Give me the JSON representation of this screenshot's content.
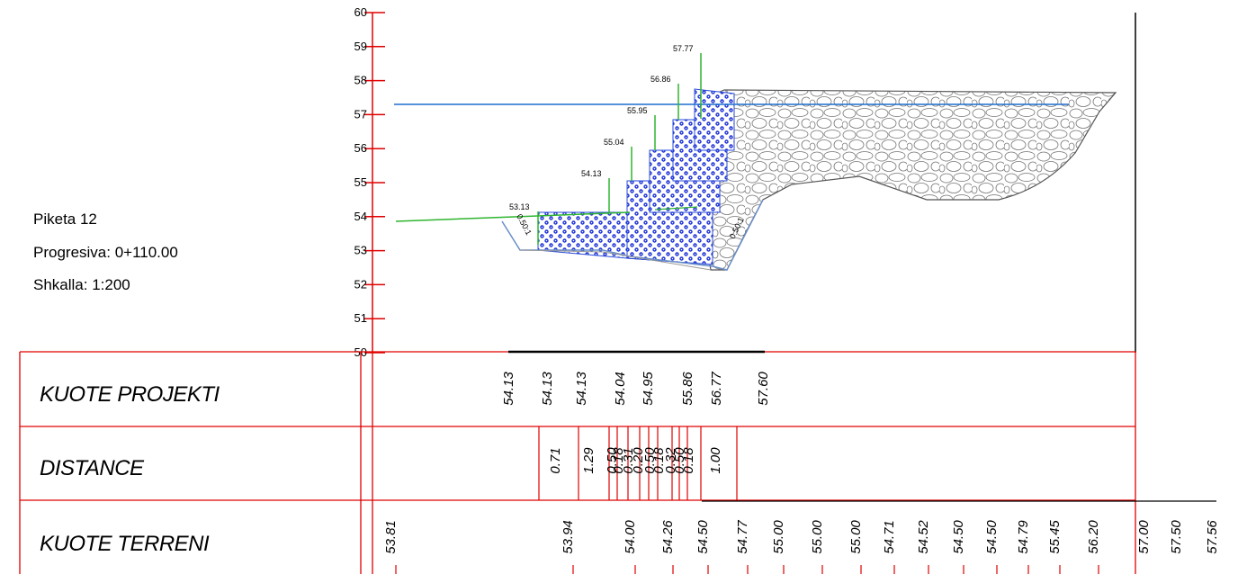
{
  "info": {
    "piketa": "Piketa 12",
    "progresiva": "Progresiva: 0+110.00",
    "shkalla": "Shkalla: 1:200"
  },
  "axis": {
    "ticks": [
      "60",
      "59",
      "58",
      "57",
      "56",
      "55",
      "54",
      "53",
      "52",
      "51",
      "50"
    ]
  },
  "step_elevations": [
    "53.13",
    "54.13",
    "55.04",
    "55.95",
    "56.86",
    "57.77"
  ],
  "slope_labels": [
    "0.50:1",
    "0.50:1"
  ],
  "rows": {
    "kuote_projekti": {
      "label": "KUOTE PROJEKTI",
      "values": [
        "54.13",
        "54.13",
        "54.13",
        "54.04",
        "54.95",
        "55.86",
        "56.77",
        "57.60"
      ]
    },
    "distance": {
      "label": "DISTANCE",
      "values": [
        "0.71",
        "1.29",
        "0.50",
        "0.18",
        "0.31",
        "0.20",
        "0.50",
        "0.18",
        "0.32",
        "0.50",
        "0.18",
        "1.00"
      ]
    },
    "kuote_terreni": {
      "label": "KUOTE TERRENI",
      "values": [
        "53.81",
        "53.94",
        "54.00",
        "54.26",
        "54.50",
        "54.77",
        "55.00",
        "55.00",
        "55.00",
        "54.71",
        "54.52",
        "54.50",
        "54.50",
        "54.79",
        "55.45",
        "56.20",
        "57.00",
        "57.50",
        "57.56"
      ]
    }
  },
  "colors": {
    "table_lines": "#e00000",
    "water_line": "#1e6fd0",
    "gabion_fill": "#1a2fd6",
    "ground_line": "#3c9a3c",
    "riprap_fill": "#c8c8c8"
  }
}
